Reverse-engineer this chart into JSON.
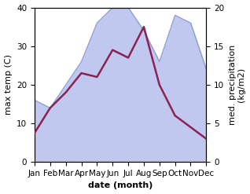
{
  "months": [
    "Jan",
    "Feb",
    "Mar",
    "Apr",
    "May",
    "Jun",
    "Jul",
    "Aug",
    "Sep",
    "Oct",
    "Nov",
    "Dec"
  ],
  "temp": [
    7.5,
    14,
    18,
    23,
    22,
    29,
    27,
    35,
    20,
    12,
    9,
    6
  ],
  "precip": [
    8,
    7,
    10,
    13,
    18,
    20,
    20,
    17,
    13,
    19,
    18,
    12
  ],
  "temp_color": "#8B2252",
  "precip_fill_color": "#c0c8f0",
  "precip_line_color": "#8899cc",
  "ylabel_left": "max temp (C)",
  "ylabel_right": "med. precipitation\n(kg/m2)",
  "xlabel": "date (month)",
  "ylim_left": [
    0,
    40
  ],
  "ylim_right": [
    0,
    20
  ],
  "yticks_left": [
    0,
    10,
    20,
    30,
    40
  ],
  "yticks_right": [
    0,
    5,
    10,
    15,
    20
  ],
  "label_fontsize": 8,
  "tick_fontsize": 7.5
}
